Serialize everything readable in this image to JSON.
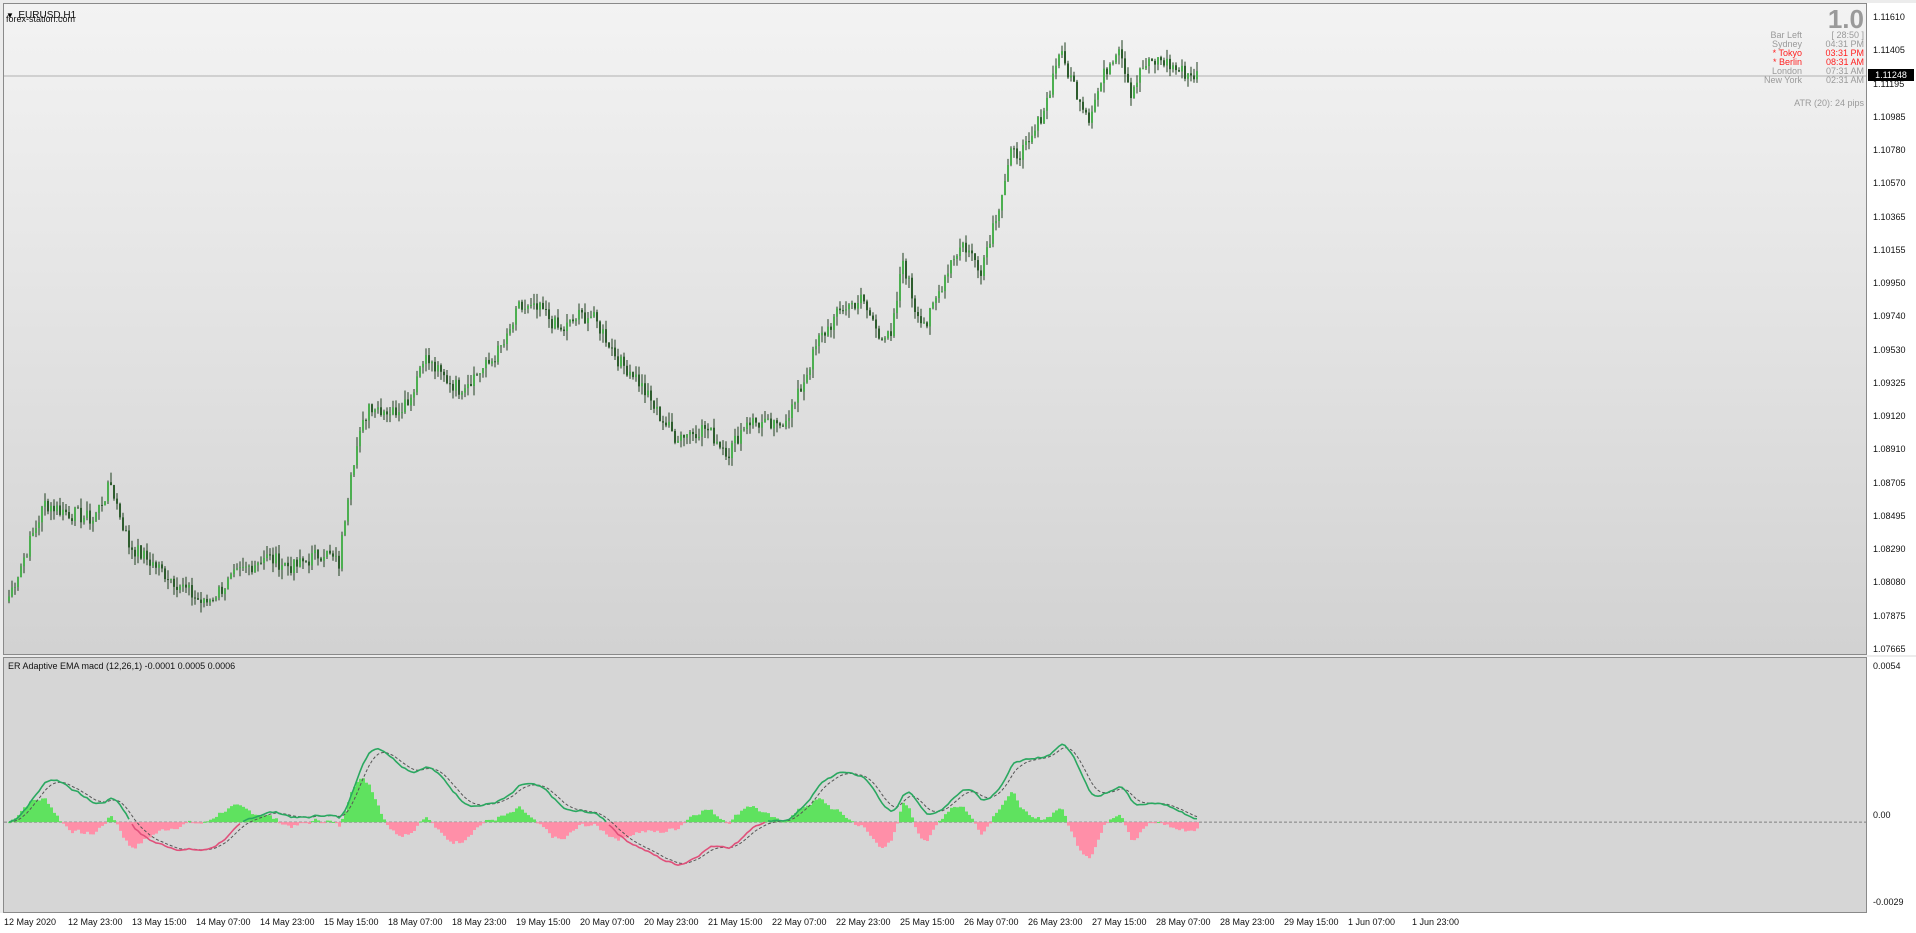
{
  "window": {
    "symbol": "EURUSD,H1",
    "watermark": "forex-station.com"
  },
  "info_panel": {
    "big_value": "1.0",
    "rows": [
      {
        "label": "Bar Left",
        "value": "[ 28:50 ]",
        "color": "#9a9a9a"
      },
      {
        "label": "Sydney",
        "value": "04:31 PM",
        "color": "#9a9a9a"
      },
      {
        "label": "* Tokyo",
        "value": "03:31 PM",
        "color": "#ff2020"
      },
      {
        "label": "* Berlin",
        "value": "08:31 AM",
        "color": "#ff2020"
      },
      {
        "label": "London",
        "value": "07:31 AM",
        "color": "#9a9a9a"
      },
      {
        "label": "New York",
        "value": "02:31 AM",
        "color": "#9a9a9a"
      }
    ],
    "atr": "ATR (20): 24 pips"
  },
  "price_axis": {
    "ticks": [
      "1.11610",
      "1.11405",
      "1.11195",
      "1.10985",
      "1.10780",
      "1.10570",
      "1.10365",
      "1.10155",
      "1.09950",
      "1.09740",
      "1.09530",
      "1.09325",
      "1.09120",
      "1.08910",
      "1.08705",
      "1.08495",
      "1.08290",
      "1.08080",
      "1.07875",
      "1.07665"
    ],
    "current_price": "1.11248"
  },
  "indicator": {
    "title": "ER Adaptive EMA macd (12,26,1) -0.0001 0.0005 0.0006",
    "axis_ticks": [
      "0.0054",
      "0.00",
      "-0.0029"
    ]
  },
  "time_axis": {
    "labels": [
      "12 May 2020",
      "12 May 23:00",
      "13 May 15:00",
      "14 May 07:00",
      "14 May 23:00",
      "15 May 15:00",
      "18 May 07:00",
      "18 May 23:00",
      "19 May 15:00",
      "20 May 07:00",
      "20 May 23:00",
      "21 May 15:00",
      "22 May 07:00",
      "22 May 23:00",
      "25 May 15:00",
      "26 May 07:00",
      "26 May 23:00",
      "27 May 15:00",
      "28 May 07:00",
      "28 May 23:00",
      "29 May 15:00",
      "1 Jun 07:00",
      "1 Jun 23:00"
    ]
  },
  "colors": {
    "bull_candle": "#4caf50",
    "bear_candle": "#2e5d2e",
    "macd_pos_line": "#2aa860",
    "macd_neg_line": "#e0507a",
    "hist_pos": "#5fe25f",
    "hist_neg": "#ff8fa8"
  },
  "chart_data": {
    "type": "candlestick",
    "series_anchor_closes": [
      [
        0,
        1.08
      ],
      [
        12,
        1.0858
      ],
      [
        20,
        1.0852
      ],
      [
        28,
        1.0848
      ],
      [
        34,
        1.087
      ],
      [
        40,
        1.0832
      ],
      [
        55,
        1.081
      ],
      [
        65,
        1.0795
      ],
      [
        75,
        1.0812
      ],
      [
        85,
        1.0825
      ],
      [
        95,
        1.0818
      ],
      [
        105,
        1.0828
      ],
      [
        110,
        1.082
      ],
      [
        114,
        1.088
      ],
      [
        120,
        1.092
      ],
      [
        128,
        1.0915
      ],
      [
        134,
        1.0925
      ],
      [
        138,
        1.095
      ],
      [
        144,
        1.0938
      ],
      [
        150,
        1.093
      ],
      [
        160,
        1.0945
      ],
      [
        166,
        1.096
      ],
      [
        170,
        1.098
      ],
      [
        178,
        1.0978
      ],
      [
        184,
        1.0965
      ],
      [
        190,
        1.0975
      ],
      [
        194,
        1.0975
      ],
      [
        198,
        1.0965
      ],
      [
        204,
        1.0945
      ],
      [
        208,
        1.094
      ],
      [
        216,
        1.0915
      ],
      [
        222,
        1.09
      ],
      [
        232,
        1.0905
      ],
      [
        240,
        1.089
      ],
      [
        246,
        1.091
      ],
      [
        256,
        1.0905
      ],
      [
        262,
        1.092
      ],
      [
        270,
        1.096
      ],
      [
        278,
        1.098
      ],
      [
        284,
        1.0985
      ],
      [
        290,
        1.0965
      ],
      [
        294,
        1.096
      ],
      [
        298,
        1.101
      ],
      [
        302,
        1.098
      ],
      [
        306,
        1.097
      ],
      [
        314,
        1.101
      ],
      [
        318,
        1.102
      ],
      [
        324,
        1.1005
      ],
      [
        330,
        1.1045
      ],
      [
        334,
        1.1075
      ],
      [
        340,
        1.108
      ],
      [
        346,
        1.111
      ],
      [
        350,
        1.114
      ],
      [
        356,
        1.1115
      ],
      [
        360,
        1.11
      ],
      [
        366,
        1.113
      ],
      [
        370,
        1.1145
      ],
      [
        374,
        1.1115
      ],
      [
        378,
        1.113
      ],
      [
        384,
        1.1135
      ],
      [
        390,
        1.1128
      ],
      [
        396,
        1.1125
      ]
    ],
    "price_range": [
      1.07665,
      1.1161
    ],
    "macd_range": [
      -0.0029,
      0.0054
    ]
  }
}
